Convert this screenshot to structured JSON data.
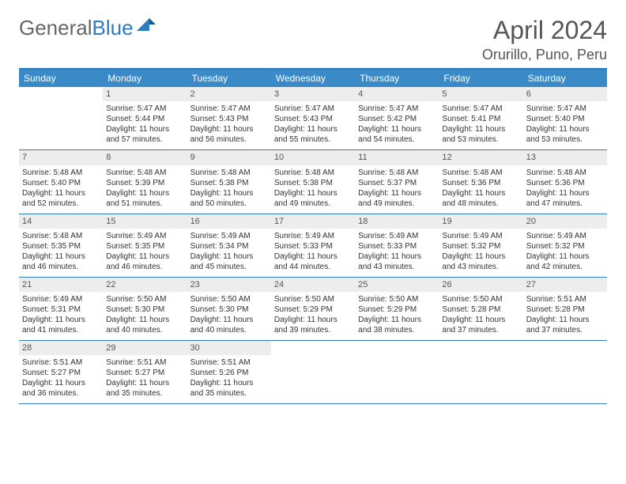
{
  "logo": {
    "text1": "General",
    "text2": "Blue"
  },
  "title": "April 2024",
  "location": "Orurillo, Puno, Peru",
  "day_names": [
    "Sunday",
    "Monday",
    "Tuesday",
    "Wednesday",
    "Thursday",
    "Friday",
    "Saturday"
  ],
  "colors": {
    "header_bg": "#3a8ac8",
    "header_border": "#2f7bbf",
    "daynum_bg": "#ededed",
    "text": "#333333",
    "title_text": "#555555"
  },
  "weeks": [
    [
      {
        "n": "",
        "empty": true
      },
      {
        "n": "1",
        "sr": "Sunrise: 5:47 AM",
        "ss": "Sunset: 5:44 PM",
        "d1": "Daylight: 11 hours",
        "d2": "and 57 minutes."
      },
      {
        "n": "2",
        "sr": "Sunrise: 5:47 AM",
        "ss": "Sunset: 5:43 PM",
        "d1": "Daylight: 11 hours",
        "d2": "and 56 minutes."
      },
      {
        "n": "3",
        "sr": "Sunrise: 5:47 AM",
        "ss": "Sunset: 5:43 PM",
        "d1": "Daylight: 11 hours",
        "d2": "and 55 minutes."
      },
      {
        "n": "4",
        "sr": "Sunrise: 5:47 AM",
        "ss": "Sunset: 5:42 PM",
        "d1": "Daylight: 11 hours",
        "d2": "and 54 minutes."
      },
      {
        "n": "5",
        "sr": "Sunrise: 5:47 AM",
        "ss": "Sunset: 5:41 PM",
        "d1": "Daylight: 11 hours",
        "d2": "and 53 minutes."
      },
      {
        "n": "6",
        "sr": "Sunrise: 5:47 AM",
        "ss": "Sunset: 5:40 PM",
        "d1": "Daylight: 11 hours",
        "d2": "and 53 minutes."
      }
    ],
    [
      {
        "n": "7",
        "sr": "Sunrise: 5:48 AM",
        "ss": "Sunset: 5:40 PM",
        "d1": "Daylight: 11 hours",
        "d2": "and 52 minutes."
      },
      {
        "n": "8",
        "sr": "Sunrise: 5:48 AM",
        "ss": "Sunset: 5:39 PM",
        "d1": "Daylight: 11 hours",
        "d2": "and 51 minutes."
      },
      {
        "n": "9",
        "sr": "Sunrise: 5:48 AM",
        "ss": "Sunset: 5:38 PM",
        "d1": "Daylight: 11 hours",
        "d2": "and 50 minutes."
      },
      {
        "n": "10",
        "sr": "Sunrise: 5:48 AM",
        "ss": "Sunset: 5:38 PM",
        "d1": "Daylight: 11 hours",
        "d2": "and 49 minutes."
      },
      {
        "n": "11",
        "sr": "Sunrise: 5:48 AM",
        "ss": "Sunset: 5:37 PM",
        "d1": "Daylight: 11 hours",
        "d2": "and 49 minutes."
      },
      {
        "n": "12",
        "sr": "Sunrise: 5:48 AM",
        "ss": "Sunset: 5:36 PM",
        "d1": "Daylight: 11 hours",
        "d2": "and 48 minutes."
      },
      {
        "n": "13",
        "sr": "Sunrise: 5:48 AM",
        "ss": "Sunset: 5:36 PM",
        "d1": "Daylight: 11 hours",
        "d2": "and 47 minutes."
      }
    ],
    [
      {
        "n": "14",
        "sr": "Sunrise: 5:48 AM",
        "ss": "Sunset: 5:35 PM",
        "d1": "Daylight: 11 hours",
        "d2": "and 46 minutes."
      },
      {
        "n": "15",
        "sr": "Sunrise: 5:49 AM",
        "ss": "Sunset: 5:35 PM",
        "d1": "Daylight: 11 hours",
        "d2": "and 46 minutes."
      },
      {
        "n": "16",
        "sr": "Sunrise: 5:49 AM",
        "ss": "Sunset: 5:34 PM",
        "d1": "Daylight: 11 hours",
        "d2": "and 45 minutes."
      },
      {
        "n": "17",
        "sr": "Sunrise: 5:49 AM",
        "ss": "Sunset: 5:33 PM",
        "d1": "Daylight: 11 hours",
        "d2": "and 44 minutes."
      },
      {
        "n": "18",
        "sr": "Sunrise: 5:49 AM",
        "ss": "Sunset: 5:33 PM",
        "d1": "Daylight: 11 hours",
        "d2": "and 43 minutes."
      },
      {
        "n": "19",
        "sr": "Sunrise: 5:49 AM",
        "ss": "Sunset: 5:32 PM",
        "d1": "Daylight: 11 hours",
        "d2": "and 43 minutes."
      },
      {
        "n": "20",
        "sr": "Sunrise: 5:49 AM",
        "ss": "Sunset: 5:32 PM",
        "d1": "Daylight: 11 hours",
        "d2": "and 42 minutes."
      }
    ],
    [
      {
        "n": "21",
        "sr": "Sunrise: 5:49 AM",
        "ss": "Sunset: 5:31 PM",
        "d1": "Daylight: 11 hours",
        "d2": "and 41 minutes."
      },
      {
        "n": "22",
        "sr": "Sunrise: 5:50 AM",
        "ss": "Sunset: 5:30 PM",
        "d1": "Daylight: 11 hours",
        "d2": "and 40 minutes."
      },
      {
        "n": "23",
        "sr": "Sunrise: 5:50 AM",
        "ss": "Sunset: 5:30 PM",
        "d1": "Daylight: 11 hours",
        "d2": "and 40 minutes."
      },
      {
        "n": "24",
        "sr": "Sunrise: 5:50 AM",
        "ss": "Sunset: 5:29 PM",
        "d1": "Daylight: 11 hours",
        "d2": "and 39 minutes."
      },
      {
        "n": "25",
        "sr": "Sunrise: 5:50 AM",
        "ss": "Sunset: 5:29 PM",
        "d1": "Daylight: 11 hours",
        "d2": "and 38 minutes."
      },
      {
        "n": "26",
        "sr": "Sunrise: 5:50 AM",
        "ss": "Sunset: 5:28 PM",
        "d1": "Daylight: 11 hours",
        "d2": "and 37 minutes."
      },
      {
        "n": "27",
        "sr": "Sunrise: 5:51 AM",
        "ss": "Sunset: 5:28 PM",
        "d1": "Daylight: 11 hours",
        "d2": "and 37 minutes."
      }
    ],
    [
      {
        "n": "28",
        "sr": "Sunrise: 5:51 AM",
        "ss": "Sunset: 5:27 PM",
        "d1": "Daylight: 11 hours",
        "d2": "and 36 minutes."
      },
      {
        "n": "29",
        "sr": "Sunrise: 5:51 AM",
        "ss": "Sunset: 5:27 PM",
        "d1": "Daylight: 11 hours",
        "d2": "and 35 minutes."
      },
      {
        "n": "30",
        "sr": "Sunrise: 5:51 AM",
        "ss": "Sunset: 5:26 PM",
        "d1": "Daylight: 11 hours",
        "d2": "and 35 minutes."
      },
      {
        "n": "",
        "empty": true
      },
      {
        "n": "",
        "empty": true
      },
      {
        "n": "",
        "empty": true
      },
      {
        "n": "",
        "empty": true
      }
    ]
  ]
}
